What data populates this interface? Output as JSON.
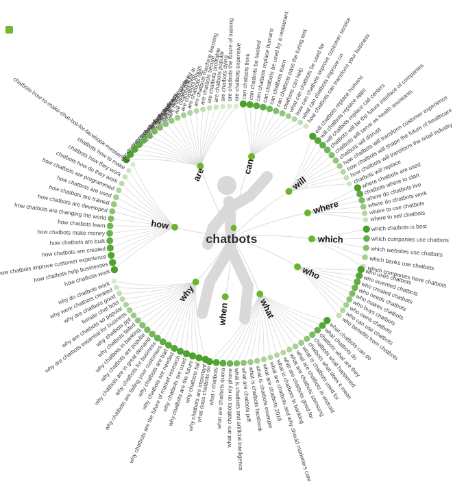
{
  "center": {
    "label": "chatbots"
  },
  "colors": {
    "dot_dark": "#4aa02a",
    "dot_light": "#e7f0de",
    "node_green": "#6ab42e",
    "line": "#d9d9d9",
    "leaf_text": "#3f3f3f",
    "center_text": "#2b2b2b",
    "marker_green": "#72b632",
    "silhouette_gray": "#d9d9d9"
  },
  "branches": [
    {
      "word": "are",
      "leaves": [
        {
          "label": "are chatbots ai",
          "w": 1
        },
        {
          "label": "are chatbots the future",
          "w": 0.97
        },
        {
          "label": "are chatbots effective",
          "w": 0.93
        },
        {
          "label": "are chatbots useful",
          "w": 0.88
        },
        {
          "label": "are chatbots good",
          "w": 0.82
        },
        {
          "label": "are chatbots dead",
          "w": 0.76
        },
        {
          "label": "are chatbots safe",
          "w": 0.7
        },
        {
          "label": "are chatbots considered ai",
          "w": 0.64
        },
        {
          "label": "are chatbots worth it",
          "w": 0.58
        },
        {
          "label": "are chatbots rpa",
          "w": 0.52
        },
        {
          "label": "are chatbots free",
          "w": 0.46
        },
        {
          "label": "are chatbots robots",
          "w": 0.4
        },
        {
          "label": "are chatbots nlp",
          "w": 0.35
        },
        {
          "label": "are chatbots machine learning",
          "w": 0.3
        },
        {
          "label": "are chatbots secure",
          "w": 0.25
        },
        {
          "label": "are chatbots profitable",
          "w": 0.21
        },
        {
          "label": "are chatbots popular",
          "w": 0.17
        },
        {
          "label": "are chatbots dying",
          "w": 0.13
        },
        {
          "label": "are chatbots the future of training",
          "w": 0.1
        },
        {
          "label": "are chatbots expensive",
          "w": 0.07
        }
      ]
    },
    {
      "word": "can",
      "leaves": [
        {
          "label": "can chatbots think",
          "w": 1
        },
        {
          "label": "can chatbots be hacked",
          "w": 0.95
        },
        {
          "label": "can chatbots replace humans",
          "w": 0.9
        },
        {
          "label": "can chatbots be used by a restaurant",
          "w": 0.84
        },
        {
          "label": "can chatbots learn",
          "w": 0.74
        },
        {
          "label": "can chatbots pass the turing test",
          "w": 0.64
        },
        {
          "label": "chatbots can help",
          "w": 0.54
        },
        {
          "label": "what can chatbots be used for",
          "w": 0.44
        },
        {
          "label": "how can chatbots improve customer service",
          "w": 0.34
        },
        {
          "label": "what can chatbots improve on",
          "w": 0.24
        },
        {
          "label": "how chatbots can transform your business",
          "w": 0.15
        }
      ]
    },
    {
      "word": "will",
      "leaves": [
        {
          "label": "will chatbots replace humans",
          "w": 1
        },
        {
          "label": "will chatbots replace apps",
          "w": 0.92
        },
        {
          "label": "will chatbots replace call centers",
          "w": 0.84
        },
        {
          "label": "chatbots will be the future interface of companies",
          "w": 0.74
        },
        {
          "label": "chatbots will serve as health assistants",
          "w": 0.64
        },
        {
          "label": "chatbots will disrupt",
          "w": 0.54
        },
        {
          "label": "how chatbots will transform customer experience",
          "w": 0.44
        },
        {
          "label": "how chatbots will shape the future of healthcare",
          "w": 0.33
        },
        {
          "label": "how chatbots will transform the retail industry",
          "w": 0.22
        },
        {
          "label": "chatbots will replace",
          "w": 0.12
        }
      ]
    },
    {
      "word": "where",
      "leaves": [
        {
          "label": "where chatbots are used",
          "w": 1
        },
        {
          "label": "chatbots where to start",
          "w": 0.85
        },
        {
          "label": "where do chatbots live",
          "w": 0.68
        },
        {
          "label": "where do chatbots work",
          "w": 0.5
        },
        {
          "label": "where to use chatbots",
          "w": 0.34
        },
        {
          "label": "where to sell chatbots",
          "w": 0.18
        }
      ]
    },
    {
      "word": "which",
      "leaves": [
        {
          "label": "which chatbots is best",
          "w": 1
        },
        {
          "label": "which companies use chatbots",
          "w": 0.82
        },
        {
          "label": "which websites use chatbots",
          "w": 0.62
        },
        {
          "label": "which banks use chatbots",
          "w": 0.42
        },
        {
          "label": "which companies have chatbots",
          "w": 0.22
        }
      ]
    },
    {
      "word": "who",
      "leaves": [
        {
          "label": "who uses chatbots",
          "w": 1
        },
        {
          "label": "who invented chatbots",
          "w": 0.93
        },
        {
          "label": "who created chatbots",
          "w": 0.85
        },
        {
          "label": "who needs chatbots",
          "w": 0.76
        },
        {
          "label": "who makes chatbots",
          "w": 0.66
        },
        {
          "label": "who buys chatbots",
          "w": 0.55
        },
        {
          "label": "who owns chatbots",
          "w": 0.44
        },
        {
          "label": "who can use chatbots",
          "w": 0.33
        },
        {
          "label": "who benefits from chatbots",
          "w": 0.22
        }
      ]
    },
    {
      "word": "what",
      "leaves": [
        {
          "label": "what chatbots can do",
          "w": 1
        },
        {
          "label": "what chatbots do",
          "w": 0.92
        },
        {
          "label": "chatbots what are they",
          "w": 0.8
        },
        {
          "label": "chatbots what happened",
          "w": 0.68
        },
        {
          "label": "chatbots what does it mean",
          "w": 0.57
        },
        {
          "label": "what is chatbots used for",
          "w": 0.48
        },
        {
          "label": "what are chatbots in android",
          "w": 0.42
        },
        {
          "label": "what are chatbots samsung",
          "w": 0.37
        },
        {
          "label": "what are chatbots good for",
          "w": 0.34
        },
        {
          "label": "what is chatbots in banking",
          "w": 0.33
        },
        {
          "label": "what are chatbots and why should marketers care",
          "w": 0.34
        },
        {
          "label": "what are chatbots 2018",
          "w": 0.37
        },
        {
          "label": "what is chatbots example",
          "w": 0.42
        },
        {
          "label": "what is chatbots facebook",
          "w": 0.48
        },
        {
          "label": "what are chatbots pdf",
          "w": 0.57
        },
        {
          "label": "what is chatbots and artificial intelligence",
          "w": 0.68
        },
        {
          "label": "what are chatbots on my phone",
          "w": 0.78
        },
        {
          "label": "what are chatbots quora",
          "w": 0.88
        },
        {
          "label": "what r chatbots",
          "w": 0.95
        },
        {
          "label": "what does chatbots do",
          "w": 1
        }
      ]
    },
    {
      "word": "when",
      "leaves": []
    },
    {
      "word": "why",
      "leaves": [
        {
          "label": "why do chatbots work",
          "w": 0.1
        },
        {
          "label": "why were chatbots created",
          "w": 0.16
        },
        {
          "label": "why are chatbots good",
          "w": 0.22
        },
        {
          "label": "female chat bots",
          "w": 0.28
        },
        {
          "label": "why are chatbots so popular",
          "w": 0.35
        },
        {
          "label": "why are chatbots essential for business",
          "w": 0.42
        },
        {
          "label": "why chatbots ppt",
          "w": 0.48
        },
        {
          "label": "why chatbots failed",
          "w": 0.55
        },
        {
          "label": "why chatbots in banking",
          "w": 0.62
        },
        {
          "label": "why chatbots are popular",
          "w": 0.68
        },
        {
          "label": "why chatbots are in great demand",
          "w": 0.74
        },
        {
          "label": "why chatbots for business",
          "w": 0.8
        },
        {
          "label": "why chatbots are failing your customers",
          "w": 0.85
        },
        {
          "label": "why chatbots are bad",
          "w": 0.89
        },
        {
          "label": "why chatbots are needed",
          "w": 0.93
        },
        {
          "label": "why chatbots are the future of market research",
          "w": 0.95
        },
        {
          "label": "why chatbots are used",
          "w": 0.97
        },
        {
          "label": "why chatbots are the future",
          "w": 0.98
        },
        {
          "label": "why chatbots fail",
          "w": 0.99
        },
        {
          "label": "why chatbots are important",
          "w": 1
        }
      ]
    },
    {
      "word": "how",
      "leaves": [
        {
          "label": "chatbots-how-to-make-chat-bot-for-facebook-messenger",
          "w": 0.08
        },
        {
          "label": "chatbots how to make",
          "w": 0.14
        },
        {
          "label": "chatbots how they work",
          "w": 0.2
        },
        {
          "label": "chatbots how do they work",
          "w": 0.27
        },
        {
          "label": "how chatbots are programmed",
          "w": 0.35
        },
        {
          "label": "how chatbots are used",
          "w": 0.43
        },
        {
          "label": "how chatbots are trained",
          "w": 0.51
        },
        {
          "label": "how chatbots are developed",
          "w": 0.59
        },
        {
          "label": "how chatbots are changing the world",
          "w": 0.67
        },
        {
          "label": "how chatbots learn",
          "w": 0.74
        },
        {
          "label": "how chatbots make money",
          "w": 0.8
        },
        {
          "label": "how chatbots are built",
          "w": 0.86
        },
        {
          "label": "how chatbots are created",
          "w": 0.91
        },
        {
          "label": "how chatbots improve customer experience",
          "w": 0.95
        },
        {
          "label": "how chatbots help businesses",
          "w": 0.98
        },
        {
          "label": "how chatbots work",
          "w": 1
        }
      ]
    }
  ]
}
